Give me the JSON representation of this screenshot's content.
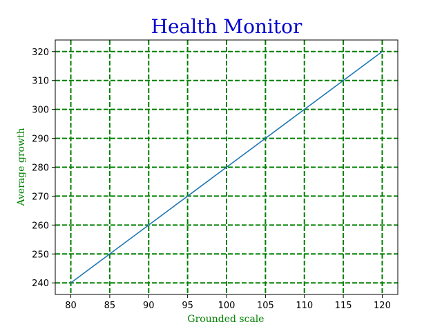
{
  "chart_data": {
    "type": "line",
    "title": "Health Monitor",
    "xlabel": "Grounded scale",
    "ylabel": "Average growth",
    "xlim": [
      78,
      122
    ],
    "ylim": [
      236,
      324
    ],
    "x_ticks": [
      80,
      85,
      90,
      95,
      100,
      105,
      110,
      115,
      120
    ],
    "y_ticks": [
      240,
      250,
      260,
      270,
      280,
      290,
      300,
      310,
      320
    ],
    "grid": true,
    "legend": "none",
    "series": [
      {
        "x": [
          80,
          85,
          90,
          95,
          100,
          105,
          110,
          115,
          120
        ],
        "y": [
          240,
          250,
          260,
          270,
          280,
          290,
          300,
          310,
          320
        ],
        "color": "#1f77b4"
      }
    ],
    "colors": {
      "title": "#0000cc",
      "axis_label": "#008000",
      "grid": "#008000",
      "line": "#1f77b4"
    }
  }
}
